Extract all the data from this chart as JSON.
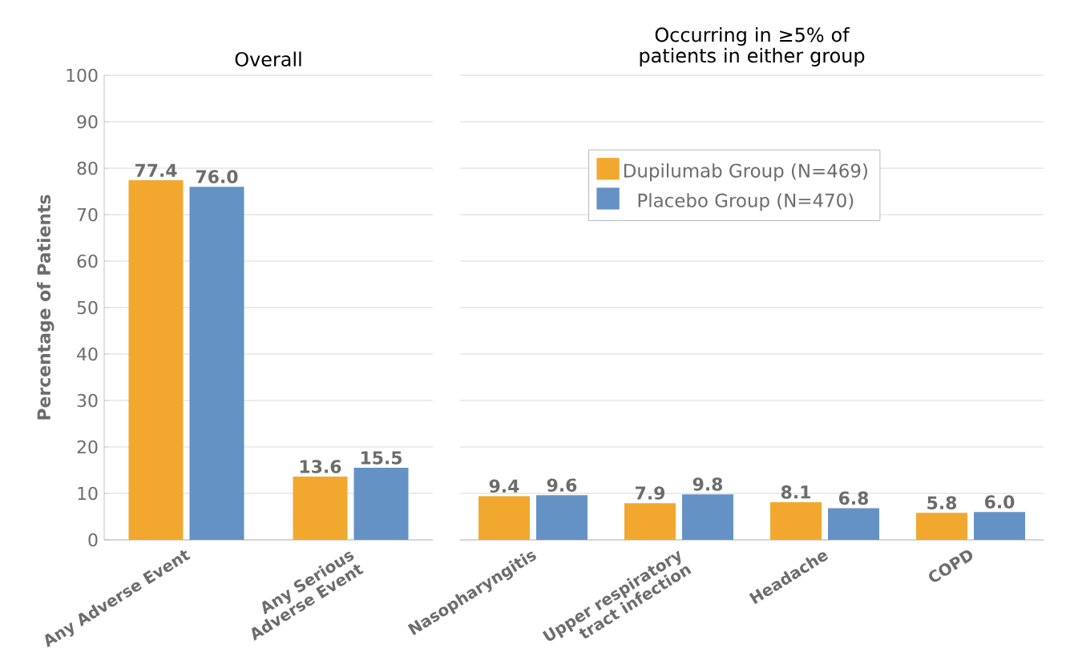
{
  "chart_data": [
    {
      "type": "bar",
      "title": "Overall",
      "ylabel": "Percentage of Patients",
      "categories": [
        "Any Adverse Event",
        "Any Serious Adverse Event"
      ],
      "series": [
        {
          "color": "#f2a82f",
          "values": [
            77.4,
            13.6
          ],
          "value_labels": [
            "77.4",
            "13.6"
          ]
        },
        {
          "color": "#6592c5",
          "values": [
            76.0,
            15.5
          ],
          "value_labels": [
            "76.0",
            "15.5"
          ]
        }
      ],
      "ylim": [
        0,
        100
      ],
      "yticks": [
        0,
        10,
        20,
        30,
        40,
        50,
        60,
        70,
        80,
        90,
        100
      ],
      "grid": "y",
      "legend": false
    },
    {
      "type": "bar",
      "title": "Occurring in ≥5% of patients in either group",
      "categories": [
        "Nasopharyngitis",
        "Upper respiratory tract infection",
        "Headache",
        "COPD"
      ],
      "series": [
        {
          "name": "Dupilumab Group (N=469)",
          "color": "#f2a82f",
          "values": [
            9.4,
            7.9,
            8.1,
            5.8
          ],
          "value_labels": [
            "9.4",
            "7.9",
            "8.1",
            "5.8"
          ]
        },
        {
          "name": "Placebo Group (N=470)",
          "color": "#6592c5",
          "values": [
            9.6,
            9.8,
            6.8,
            6.0
          ],
          "value_labels": [
            "9.6",
            "9.8",
            "6.8",
            "6.0"
          ]
        }
      ],
      "ylim": [
        0,
        100
      ],
      "yticks": [
        0,
        10,
        20,
        30,
        40,
        50,
        60,
        70,
        80,
        90,
        100
      ],
      "grid": "y",
      "legend": "top",
      "tick_labels": "x"
    }
  ]
}
